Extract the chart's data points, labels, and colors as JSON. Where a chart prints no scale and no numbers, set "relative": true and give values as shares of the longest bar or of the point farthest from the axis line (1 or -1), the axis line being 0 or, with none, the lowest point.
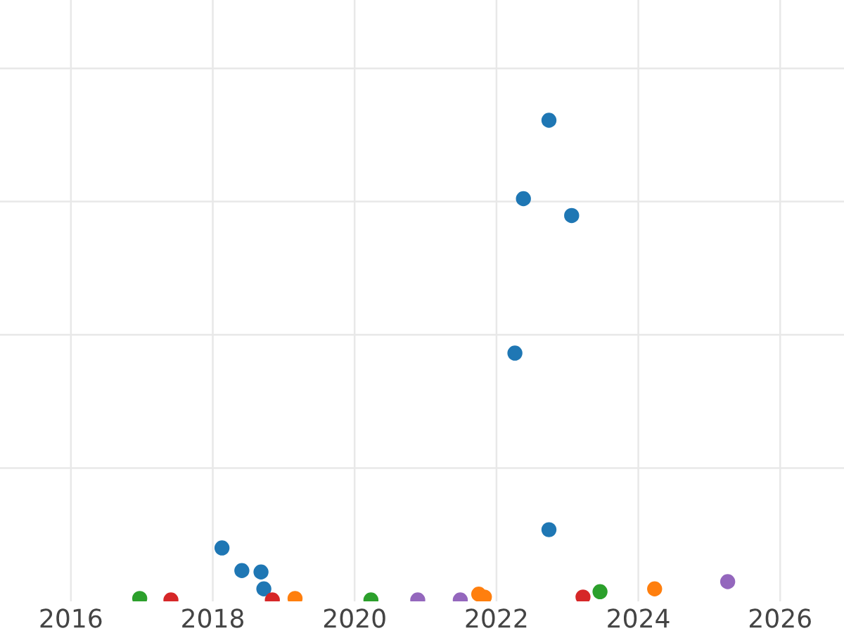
{
  "chart_data": {
    "type": "scatter",
    "relative": true,
    "xlim": [
      2015,
      2026.9
    ],
    "xticks": [
      2016,
      2018,
      2020,
      2022,
      2024,
      2026
    ],
    "grid": true,
    "tick_labels": "x",
    "marker": "circle",
    "legend": false,
    "series": [
      {
        "color": "#1f77b4",
        "x": [
          2022.74,
          2022.38,
          2023.06,
          2022.26,
          2022.74,
          2018.13,
          2018.41,
          2018.68,
          2018.72
        ],
        "values": [
          1.0,
          0.837,
          0.802,
          0.516,
          0.149,
          0.111,
          0.064,
          0.061,
          0.026
        ]
      },
      {
        "color": "#2ca02c",
        "x": [
          2016.97,
          2020.23,
          2023.46
        ],
        "values": [
          0.006,
          0.003,
          0.02
        ]
      },
      {
        "color": "#d62728",
        "x": [
          2017.41,
          2018.84,
          2023.22
        ],
        "values": [
          0.003,
          0.003,
          0.009
        ]
      },
      {
        "color": "#ff7f0e",
        "x": [
          2019.16,
          2021.75,
          2021.83,
          2024.23
        ],
        "values": [
          0.006,
          0.015,
          0.009,
          0.026
        ]
      },
      {
        "color": "#9467bd",
        "x": [
          2020.89,
          2021.49,
          2025.26
        ],
        "values": [
          0.003,
          0.003,
          0.041
        ]
      }
    ]
  }
}
